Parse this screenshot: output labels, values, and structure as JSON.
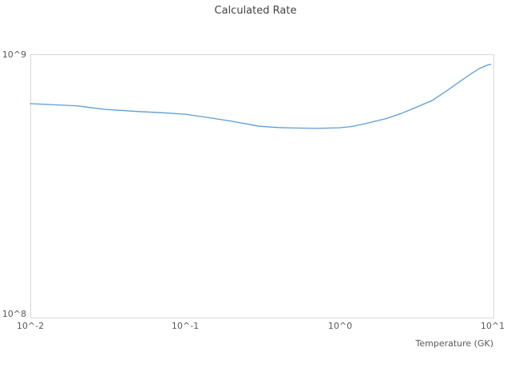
{
  "chart_data": {
    "type": "line",
    "title": "Calculated Rate",
    "xlabel": "Temperature (GK)",
    "ylabel": "",
    "x_scale": "log",
    "y_scale": "log",
    "xlim": [
      0.01,
      10
    ],
    "ylim": [
      100000000.0,
      1000000000.0
    ],
    "grid": false,
    "legend": false,
    "line_color": "#5b9bd5",
    "border_color": "#d9d9d9",
    "x_tick_labels": [
      "10^-2",
      "10^-1",
      "10^0",
      "10^1"
    ],
    "x_tick_values": [
      0.01,
      0.1,
      1,
      10
    ],
    "y_tick_labels": [
      "10^8",
      "10^9"
    ],
    "y_tick_values": [
      100000000.0,
      1000000000.0
    ],
    "series": [
      {
        "name": "Calculated Rate",
        "x": [
          0.01,
          0.02,
          0.03,
          0.05,
          0.07,
          0.1,
          0.15,
          0.2,
          0.3,
          0.4,
          0.5,
          0.6,
          0.7,
          0.8,
          1.0,
          1.2,
          1.5,
          2.0,
          2.5,
          3.0,
          4.0,
          5.0,
          6.0,
          7.0,
          8.0,
          9.0,
          9.5
        ],
        "y": [
          650000000.0,
          638000000.0,
          619000000.0,
          607000000.0,
          601000000.0,
          593000000.0,
          573000000.0,
          558000000.0,
          534000000.0,
          528000000.0,
          526000000.0,
          525000000.0,
          524000000.0,
          525000000.0,
          527000000.0,
          533000000.0,
          548000000.0,
          571000000.0,
          597000000.0,
          623000000.0,
          670000000.0,
          731000000.0,
          789000000.0,
          840000000.0,
          882000000.0,
          910000000.0,
          917000000.0
        ]
      }
    ]
  }
}
